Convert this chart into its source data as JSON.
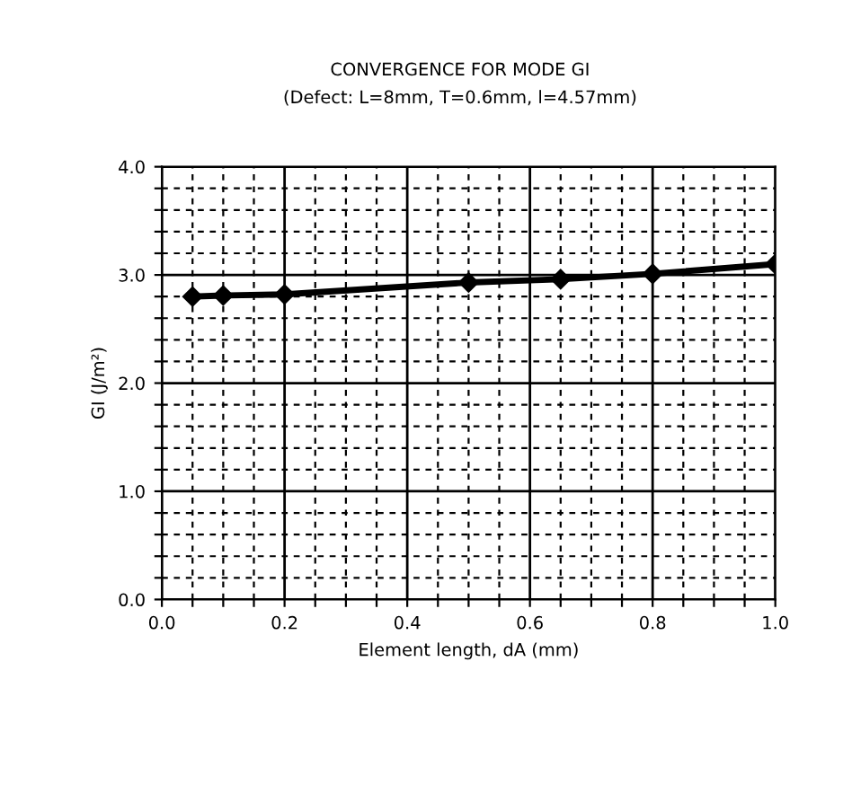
{
  "chart_data": {
    "type": "line",
    "title": "CONVERGENCE FOR MODE GI",
    "subtitle": "(Defect: L=8mm, T=0.6mm, l=4.57mm)",
    "xlabel": "Element length, dA (mm)",
    "ylabel": "GI (J/m²)",
    "x": [
      0.05,
      0.1,
      0.2,
      0.5,
      0.65,
      0.8,
      1.0
    ],
    "series": [
      {
        "color": "#000000",
        "values": [
          2.8,
          2.81,
          2.82,
          2.93,
          2.96,
          3.01,
          3.1
        ]
      }
    ],
    "xlim": [
      0.0,
      1.0
    ],
    "ylim": [
      0.0,
      4.0
    ],
    "xticks": [
      {
        "value": 0.0,
        "label": "0.0"
      },
      {
        "value": 0.05,
        "label": null
      },
      {
        "value": 0.1,
        "label": null
      },
      {
        "value": 0.15,
        "label": null
      },
      {
        "value": 0.2,
        "label": "0.2"
      },
      {
        "value": 0.25,
        "label": null
      },
      {
        "value": 0.3,
        "label": null
      },
      {
        "value": 0.35,
        "label": null
      },
      {
        "value": 0.4,
        "label": "0.4"
      },
      {
        "value": 0.45,
        "label": null
      },
      {
        "value": 0.5,
        "label": null
      },
      {
        "value": 0.55,
        "label": null
      },
      {
        "value": 0.6,
        "label": "0.6"
      },
      {
        "value": 0.65,
        "label": null
      },
      {
        "value": 0.7,
        "label": null
      },
      {
        "value": 0.75,
        "label": null
      },
      {
        "value": 0.8,
        "label": "0.8"
      },
      {
        "value": 0.85,
        "label": null
      },
      {
        "value": 0.9,
        "label": null
      },
      {
        "value": 0.95,
        "label": null
      },
      {
        "value": 1.0,
        "label": "1.0"
      }
    ],
    "yticks": [
      {
        "value": 0.0,
        "label": "0.0"
      },
      {
        "value": 0.2,
        "label": null
      },
      {
        "value": 0.4,
        "label": null
      },
      {
        "value": 0.6,
        "label": null
      },
      {
        "value": 0.8,
        "label": null
      },
      {
        "value": 1.0,
        "label": "1.0"
      },
      {
        "value": 1.2,
        "label": null
      },
      {
        "value": 1.4,
        "label": null
      },
      {
        "value": 1.6,
        "label": null
      },
      {
        "value": 1.8,
        "label": null
      },
      {
        "value": 2.0,
        "label": "2.0"
      },
      {
        "value": 2.2,
        "label": null
      },
      {
        "value": 2.4,
        "label": null
      },
      {
        "value": 2.6,
        "label": null
      },
      {
        "value": 2.8,
        "label": null
      },
      {
        "value": 3.0,
        "label": "3.0"
      },
      {
        "value": 3.2,
        "label": null
      },
      {
        "value": 3.4,
        "label": null
      },
      {
        "value": 3.6,
        "label": null
      },
      {
        "value": 3.8,
        "label": null
      },
      {
        "value": 4.0,
        "label": "4.0"
      }
    ],
    "grid": true,
    "marker": "diamond",
    "line_style": "solid",
    "legend": false
  }
}
